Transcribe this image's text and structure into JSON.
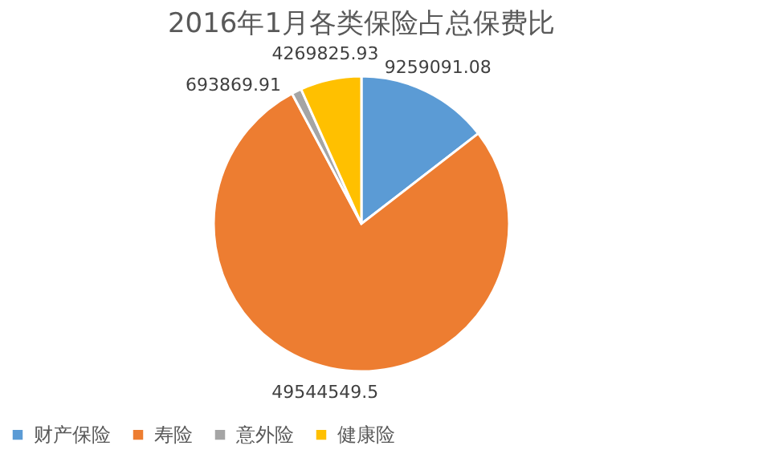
{
  "chart_data": {
    "type": "pie",
    "title": "2016年1月各类保险占总保费比",
    "categories": [
      "财产保险",
      "寿险",
      "意外险",
      "健康险"
    ],
    "values": [
      9259091.08,
      49544549.5,
      693869.91,
      4269825.93
    ],
    "colors": [
      "#5b9bd5",
      "#ed7d31",
      "#a5a5a5",
      "#ffc000"
    ],
    "data_labels": true,
    "legend": "bottom"
  }
}
